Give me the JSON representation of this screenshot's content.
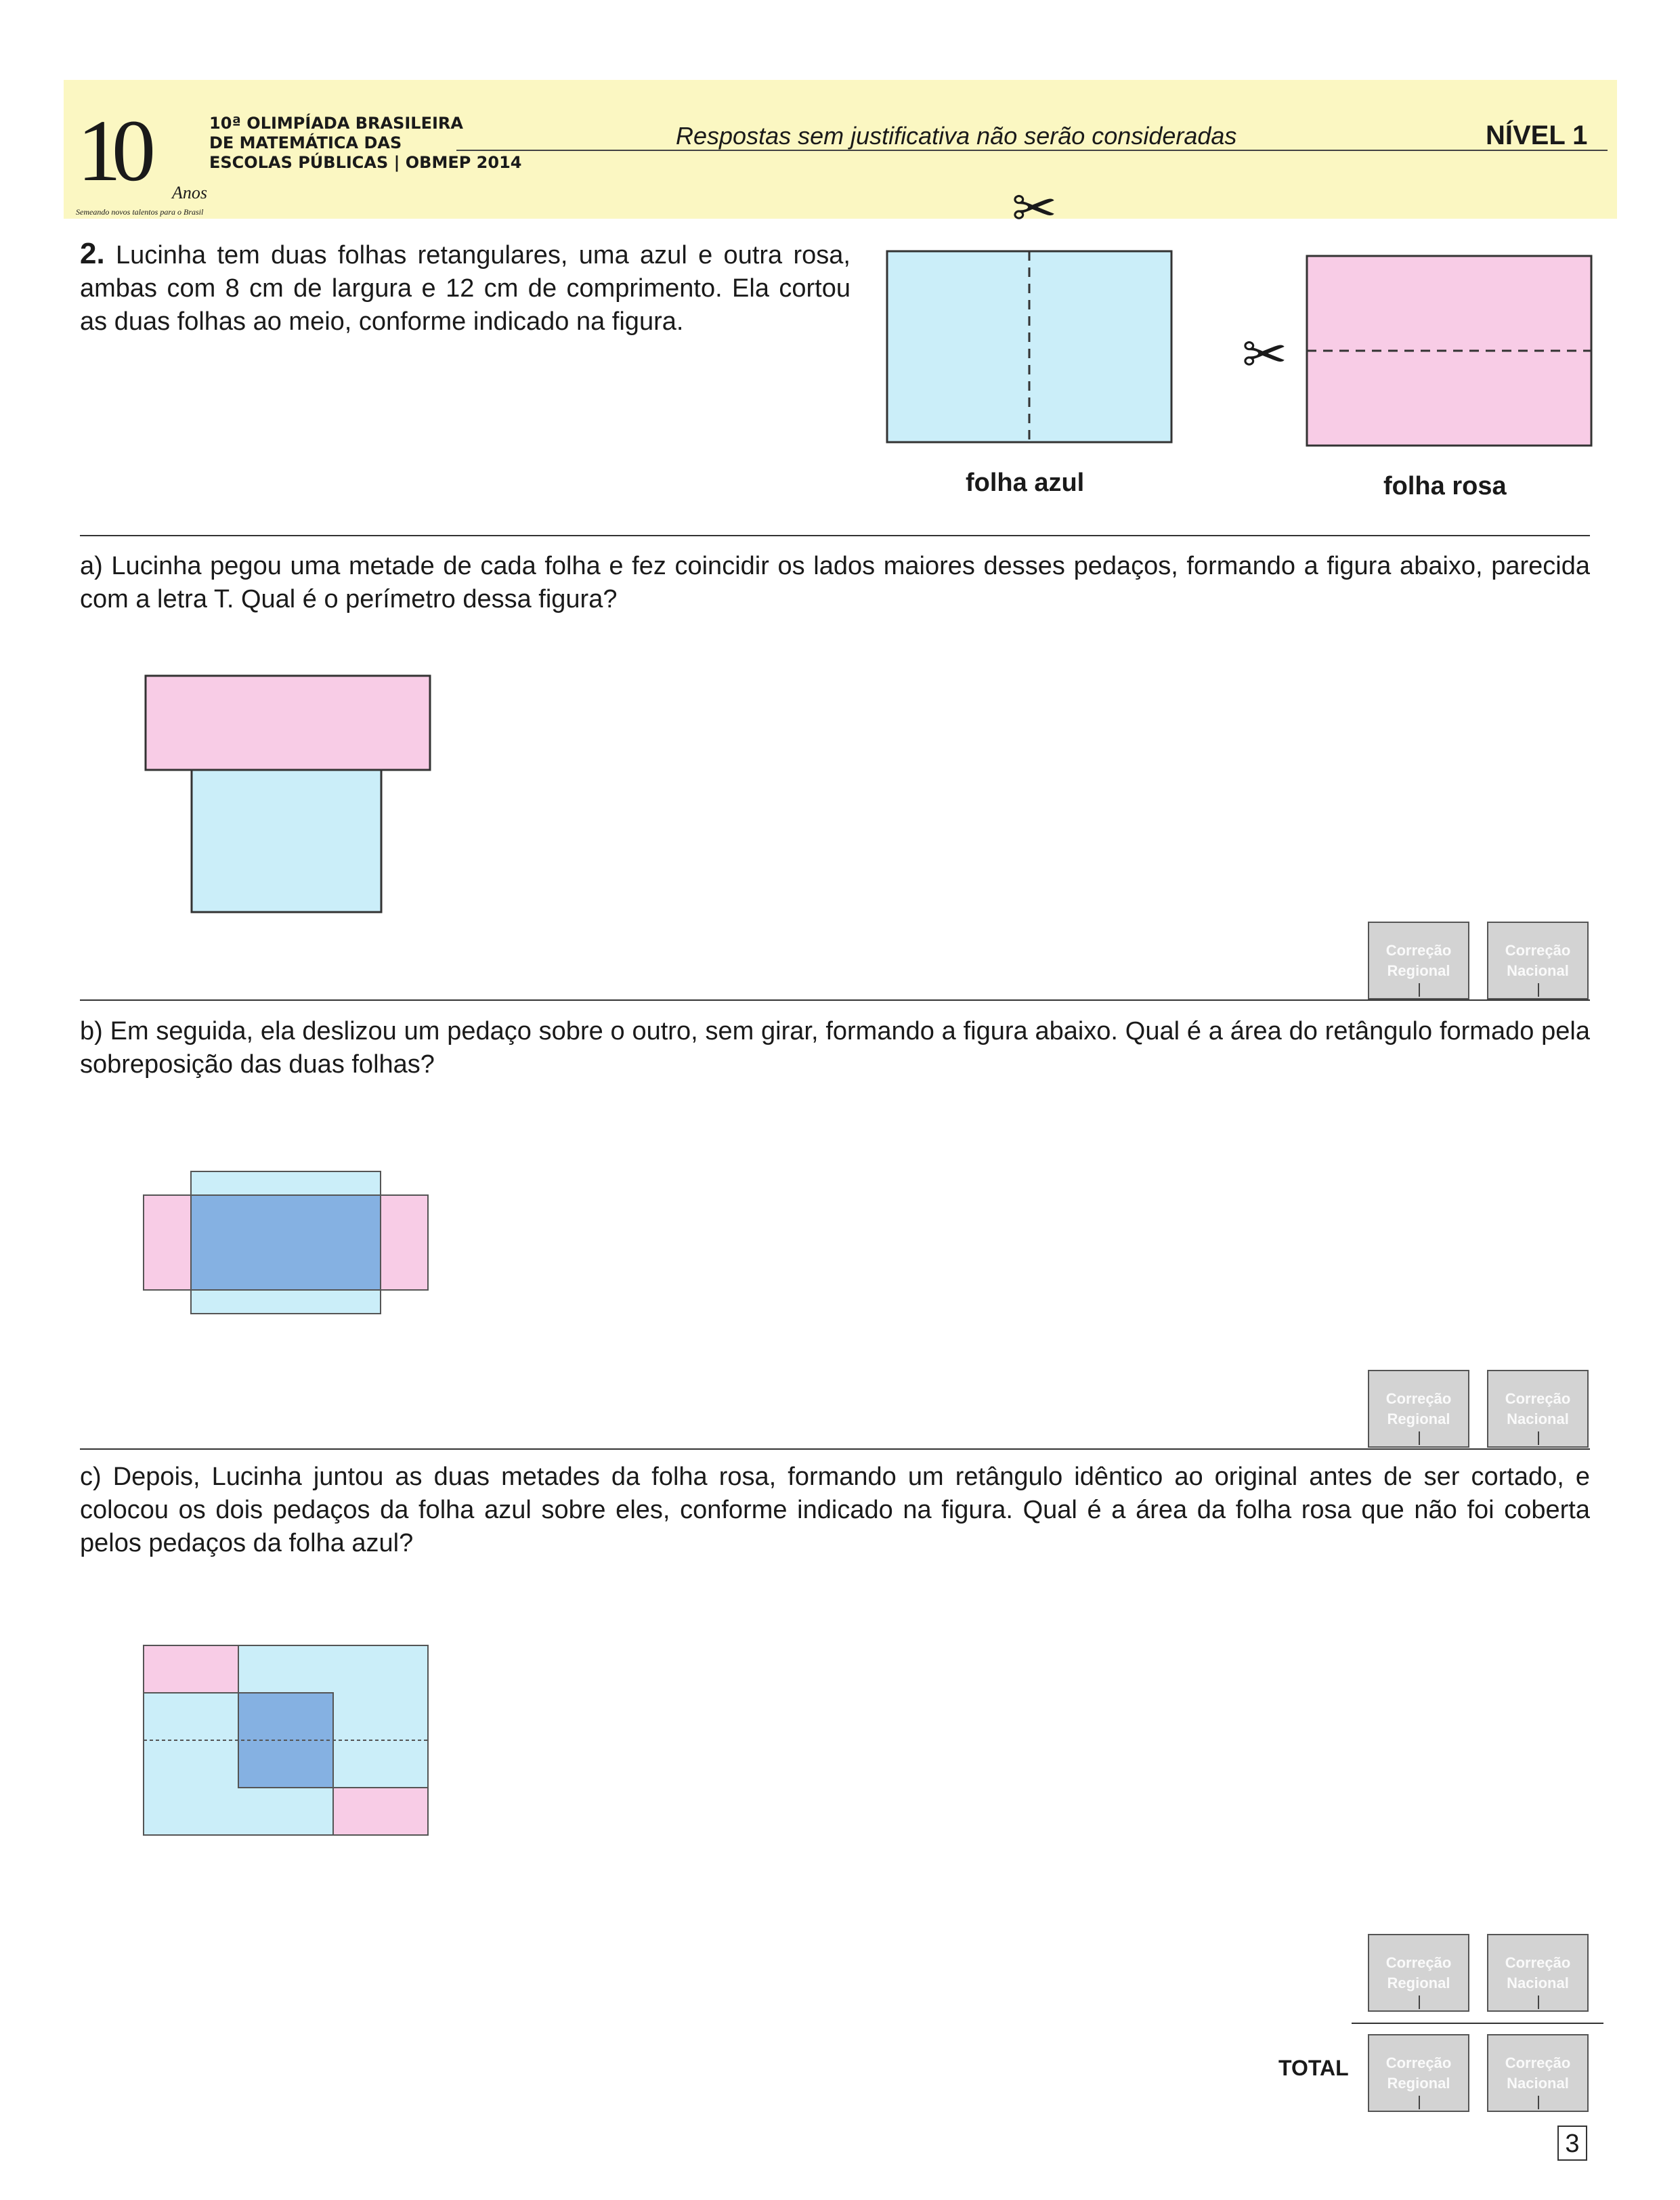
{
  "header": {
    "logo": {
      "number": "10",
      "anos": "Anos",
      "tagline": "Semeando novos talentos para o Brasil"
    },
    "org_line1": "10ª OLIMPÍADA BRASILEIRA",
    "org_line2": "DE MATEMÁTICA DAS",
    "org_line3": "ESCOLAS PÚBLICAS | OBMEP 2014",
    "motto": "Respostas sem justificativa não serão consideradas",
    "level": "NÍVEL 1"
  },
  "question": {
    "number": "2.",
    "text": "Lucinha tem duas folhas retangulares, uma azul e outra rosa, ambas com 8 cm de largura e 12 cm de comprimento. Ela cortou as duas folhas ao meio, conforme indicado na figura.",
    "label_blue": "folha azul",
    "label_pink": "folha rosa"
  },
  "part_a": {
    "text": "a) Lucinha pegou uma metade de cada folha e fez coincidir os lados maiores desses pedaços, formando a figura abaixo, parecida com a letra T. Qual é o perímetro dessa figura?"
  },
  "part_b": {
    "text": "b) Em seguida, ela deslizou um pedaço sobre o outro, sem girar, formando a figura abaixo. Qual é a área do retângulo formado pela sobreposição das duas folhas?"
  },
  "part_c": {
    "text": "c) Depois, Lucinha juntou as duas metades da folha rosa, formando um retângulo idêntico ao original antes de ser cortado, e colocou os dois pedaços da folha azul sobre eles, conforme indicado na figura. Qual é a área da folha rosa que não foi coberta pelos pedaços da folha azul?"
  },
  "grading": {
    "regional_line1": "Correção",
    "regional_line2": "Regional",
    "nacional_line1": "Correção",
    "nacional_line2": "Nacional",
    "total": "TOTAL"
  },
  "page_number": "3",
  "colors": {
    "header_bg": "#fbf7c2",
    "blue": "#cbeef9",
    "pink": "#f8cce6",
    "overlap": "#85b1e2",
    "box": "#d3d3d3"
  }
}
